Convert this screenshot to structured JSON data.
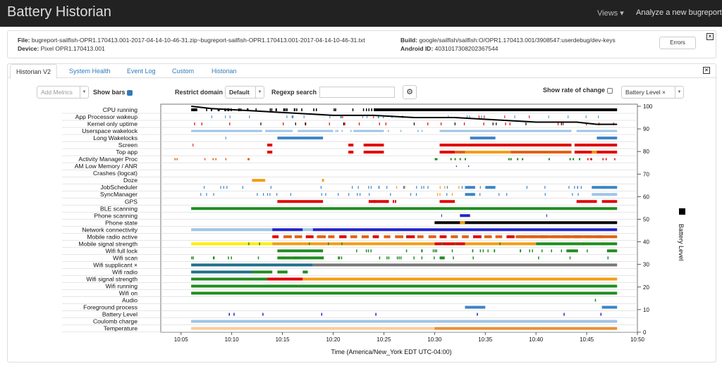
{
  "navbar": {
    "brand": "Battery Historian",
    "views": "Views ▾",
    "analyze": "Analyze a new bugreport"
  },
  "report": {
    "file_label": "File:",
    "file": "bugreport-sailfish-OPR1.170413.001-2017-04-14-10-46-31.zip~bugreport-sailfish-OPR1.170413.001-2017-04-14-10-46-31.txt",
    "device_label": "Device:",
    "device": "Pixel OPR1.170413.001",
    "build_label": "Build:",
    "build": "google/sailfish/sailfish:O/OPR1.170413.001/3908547:userdebug/dev-keys",
    "android_id_label": "Android ID:",
    "android_id": "4031017308202367544",
    "errors_button": "Errors"
  },
  "tabs": [
    "Historian V2",
    "System Health",
    "Event Log",
    "Custom",
    "Historian"
  ],
  "controls": {
    "add_metrics": "Add Metrics",
    "show_bars": "Show bars",
    "restrict_domain": "Restrict domain",
    "domain_value": "Default",
    "regexp_search": "Regexp search",
    "show_rate": "Show rate of change",
    "metric_select": "Battery Level ×"
  },
  "chart_data": {
    "type": "timeline",
    "rows": [
      "CPU running",
      "App Processor wakeup",
      "Kernel only uptime",
      "Userspace wakelock",
      "Long Wakelocks",
      "Screen",
      "Top app",
      "Activity Manager Proc",
      "AM Low Memory / ANR",
      "Crashes (logcat)",
      "Doze",
      "JobScheduler",
      "SyncManager",
      "GPS",
      "BLE scanning",
      "Phone scanning",
      "Phone state",
      "Network connectivity",
      "Mobile radio active",
      "Mobile signal strength",
      "Wifi full lock",
      "Wifi scan",
      "Wifi supplicant ×",
      "Wifi radio",
      "Wifi signal strength",
      "Wifi running",
      "Wifi on",
      "Audio",
      "Foreground process",
      "Battery Level",
      "Coulomb charge",
      "Temperature"
    ],
    "x_ticks": [
      "10:05",
      "10:10",
      "10:15",
      "10:20",
      "10:25",
      "10:30",
      "10:35",
      "10:40",
      "10:45",
      "10:50"
    ],
    "x_range_minutes": [
      3,
      50
    ],
    "xlabel": "Time (America/New_York EDT UTC-04:00)",
    "y_ticks": [
      0,
      10,
      20,
      30,
      40,
      50,
      60,
      70,
      80,
      90,
      100
    ],
    "ylabel": "Battery Level",
    "ylim": [
      0,
      100
    ],
    "battery_series": {
      "name": "Battery Level",
      "x_minutes": [
        6,
        8,
        12,
        16,
        20,
        24,
        28,
        32,
        36,
        40,
        44,
        46,
        47,
        48
      ],
      "y": [
        100,
        99,
        98,
        97,
        96,
        96,
        95,
        95,
        94,
        93,
        93,
        92,
        92,
        92
      ]
    },
    "colors": {
      "blue": "#3d85c6",
      "lightblue": "#9fc5e8",
      "red": "#e00000",
      "green": "#1e8c1e",
      "orange": "#f39c12",
      "darkblue": "#2222cc",
      "black": "#000000",
      "gray": "#777777",
      "yellow": "#ffee00",
      "teal": "#1f6f8b",
      "brownorange": "#e06010"
    }
  }
}
